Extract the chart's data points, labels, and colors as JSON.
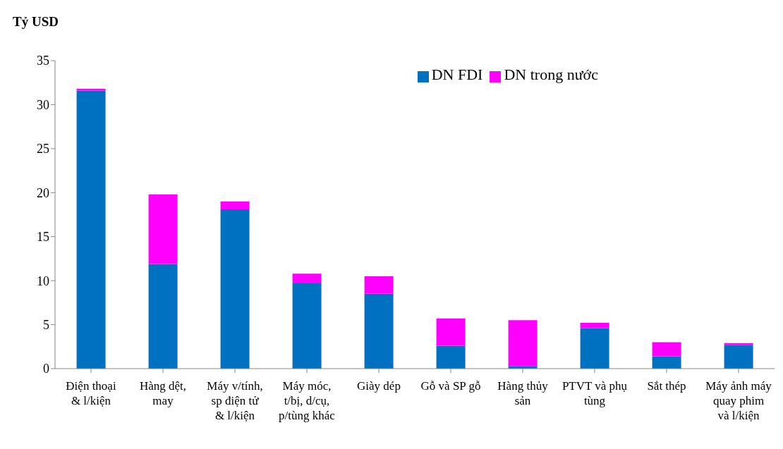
{
  "chart_data": {
    "type": "bar",
    "stacked": true,
    "ylabel": "Tỷ USD",
    "categories": [
      "Điện thoại & l/kiện",
      "Hàng dệt, may",
      "Máy v/tính, sp điện tử & l/kiện",
      "Máy móc, t/bị, d/cụ, p/tùng khác",
      "Giày dép",
      "Gỗ và SP gỗ",
      "Hàng thủy sản",
      "PTVT và phụ tùng",
      "Sắt thép",
      "Máy ảnh máy quay phim và l/kiện"
    ],
    "series": [
      {
        "name": "DN FDI",
        "color": "#0070c0",
        "values": [
          31.6,
          11.9,
          18.1,
          9.7,
          8.5,
          2.6,
          0.3,
          4.6,
          1.4,
          2.7
        ]
      },
      {
        "name": "DN trong nước",
        "color": "#ff00ff",
        "values": [
          0.2,
          7.9,
          0.9,
          1.1,
          2.0,
          3.1,
          5.2,
          0.6,
          1.6,
          0.2
        ]
      }
    ],
    "ylim": [
      0,
      35
    ],
    "yticks": [
      0,
      5,
      10,
      15,
      20,
      25,
      30,
      35
    ],
    "grid": false,
    "legend": "top right"
  }
}
